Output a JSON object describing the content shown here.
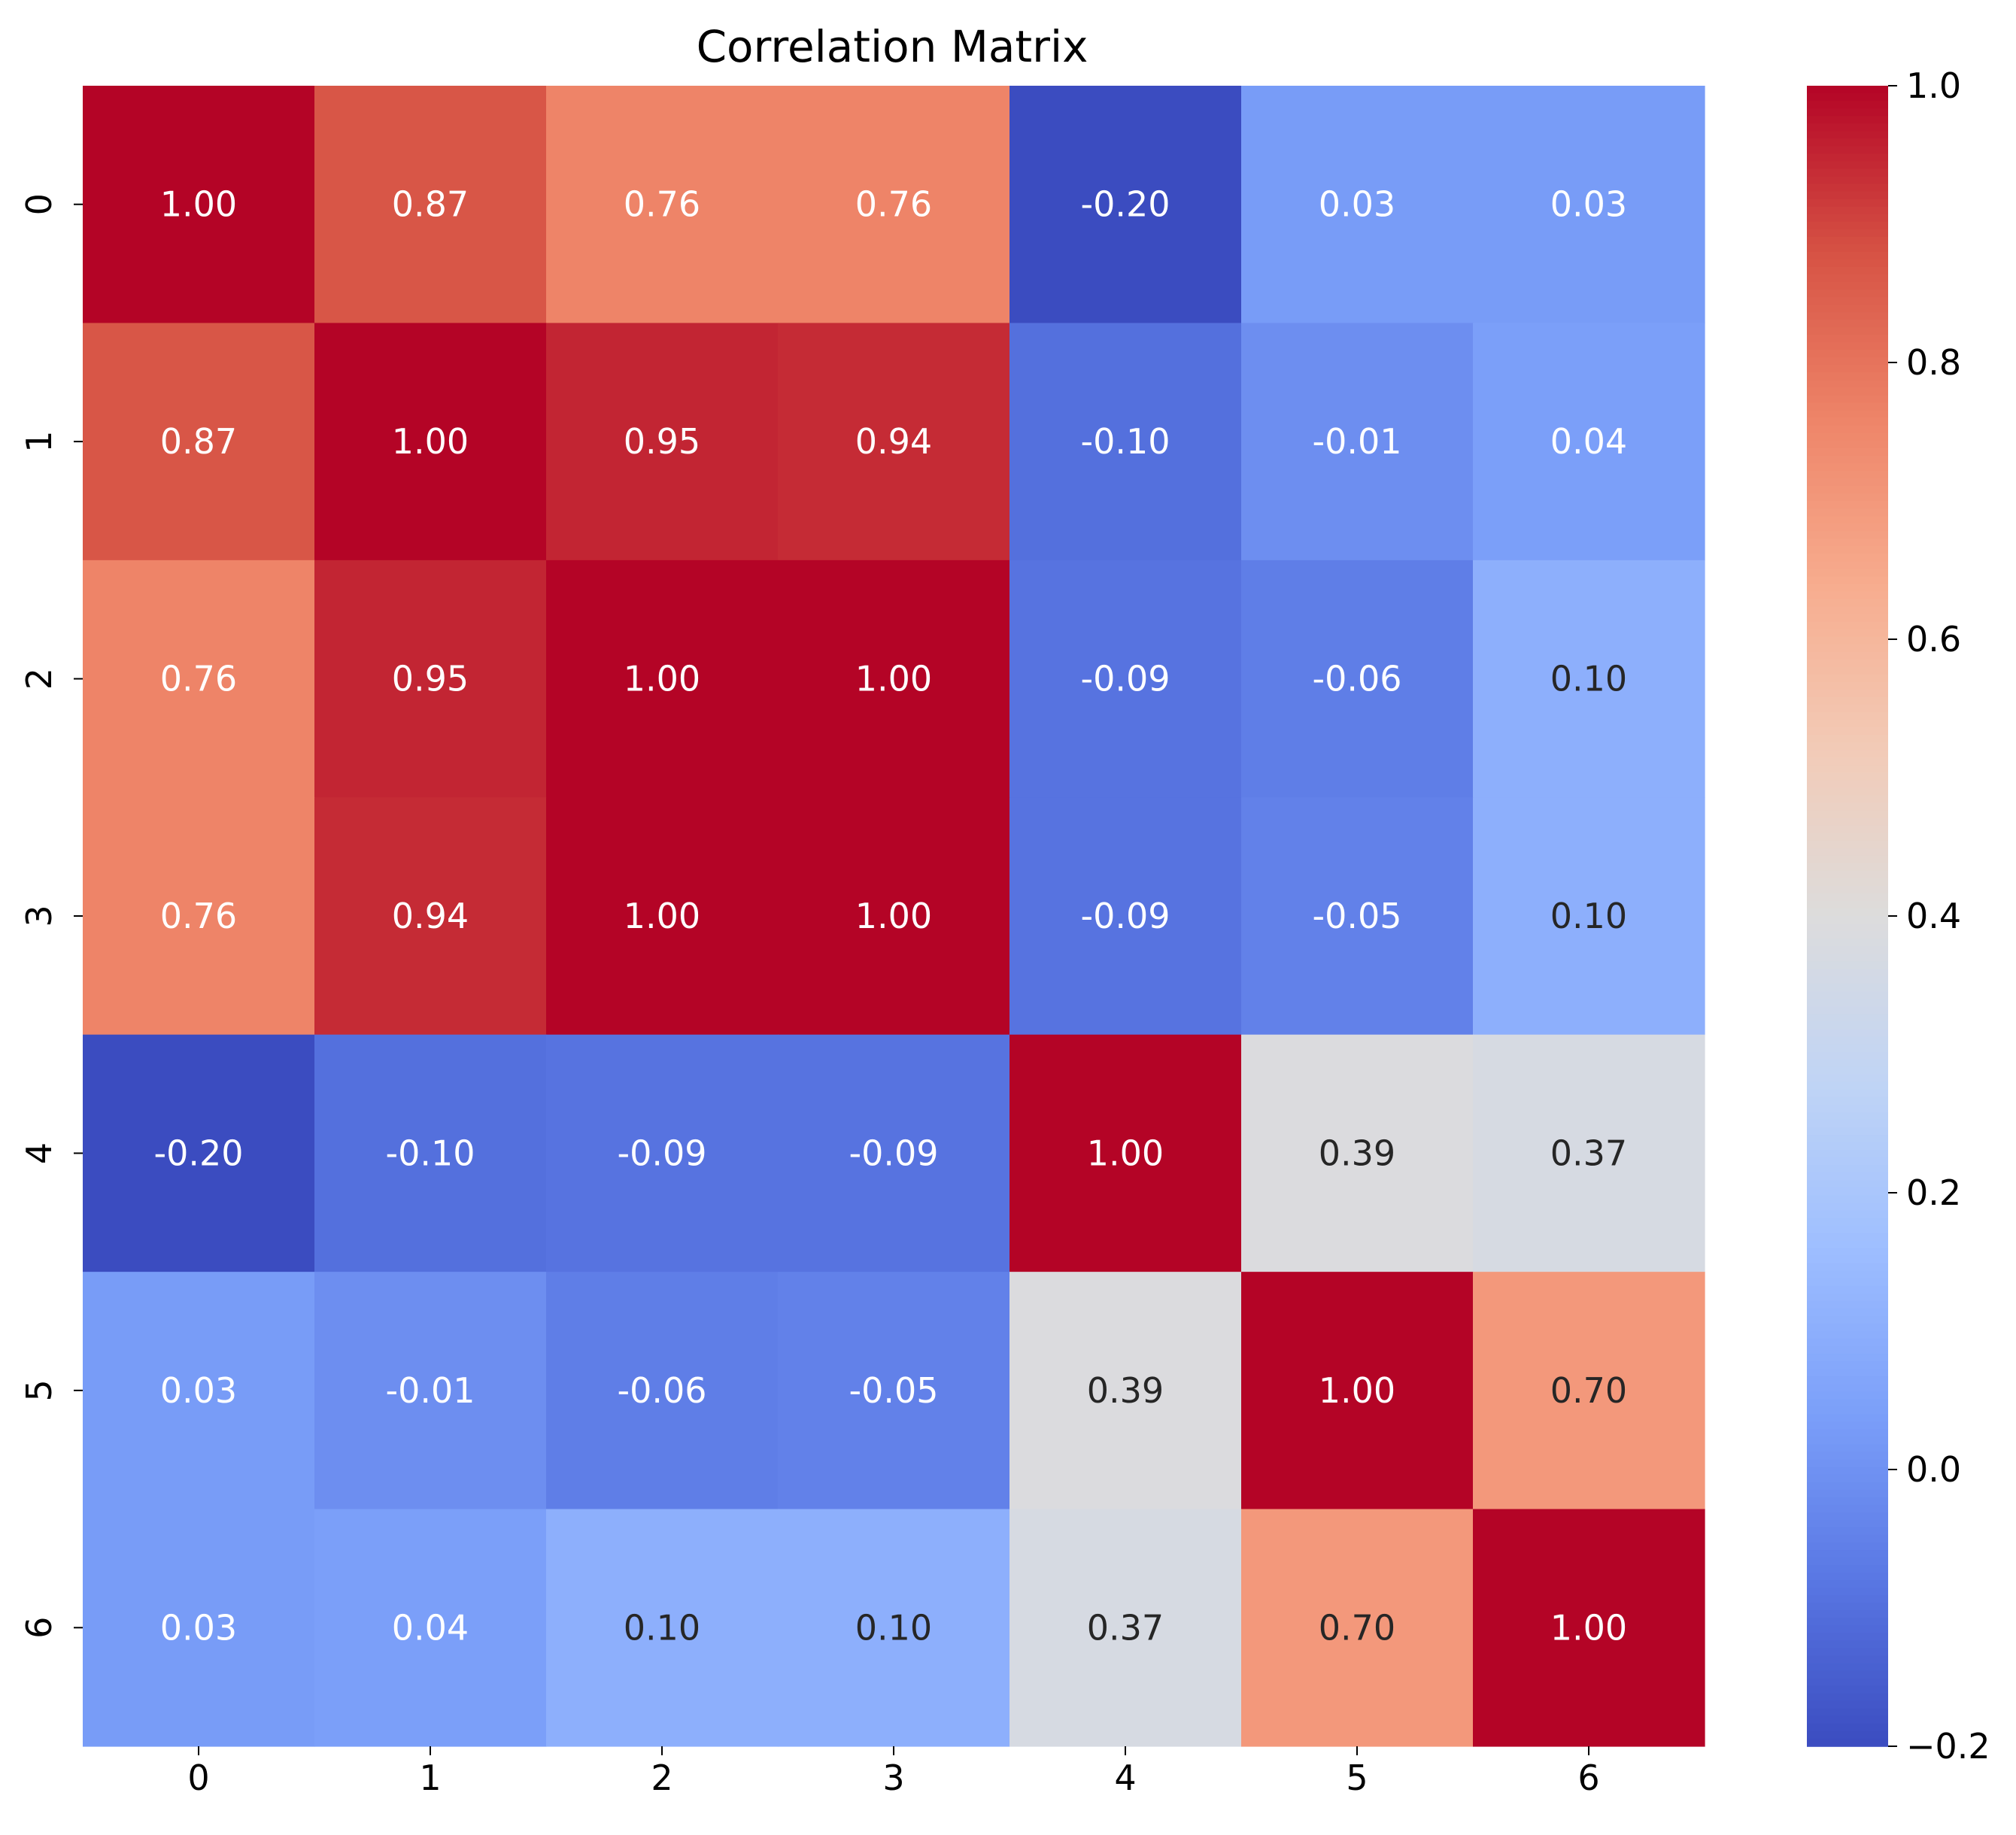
{
  "chart_data": {
    "type": "heatmap",
    "title": "Correlation Matrix",
    "xlabel": "",
    "ylabel": "",
    "x_categories": [
      "0",
      "1",
      "2",
      "3",
      "4",
      "5",
      "6"
    ],
    "y_categories": [
      "0",
      "1",
      "2",
      "3",
      "4",
      "5",
      "6"
    ],
    "values": [
      [
        1.0,
        0.87,
        0.76,
        0.76,
        -0.2,
        0.03,
        0.03
      ],
      [
        0.87,
        1.0,
        0.95,
        0.94,
        -0.1,
        -0.01,
        0.04
      ],
      [
        0.76,
        0.95,
        1.0,
        1.0,
        -0.09,
        -0.06,
        0.1
      ],
      [
        0.76,
        0.94,
        1.0,
        1.0,
        -0.09,
        -0.05,
        0.1
      ],
      [
        -0.2,
        -0.1,
        -0.09,
        -0.09,
        1.0,
        0.39,
        0.37
      ],
      [
        0.03,
        -0.01,
        -0.06,
        -0.05,
        0.39,
        1.0,
        0.7
      ],
      [
        0.03,
        0.04,
        0.1,
        0.1,
        0.37,
        0.7,
        1.0
      ]
    ],
    "annotation_format": "0.00",
    "colormap": "coolwarm",
    "colormap_stops": [
      "#3b4cc0",
      "#5977e3",
      "#7b9ff9",
      "#9ebeff",
      "#c0d4f5",
      "#dddcdc",
      "#f2cbb7",
      "#f7ac8e",
      "#ee8468",
      "#d65244",
      "#b40426"
    ],
    "color_range": [
      -0.2,
      1.0
    ],
    "colorbar": {
      "ticks": [
        1.0,
        0.8,
        0.6,
        0.4,
        0.2,
        0.0,
        -0.2
      ],
      "tick_labels": [
        "1.0",
        "0.8",
        "0.6",
        "0.4",
        "0.2",
        "0.0",
        "−0.2"
      ],
      "placement": "right"
    },
    "label_colors": {
      "light": "#ffffff",
      "dark": "#262626"
    }
  }
}
